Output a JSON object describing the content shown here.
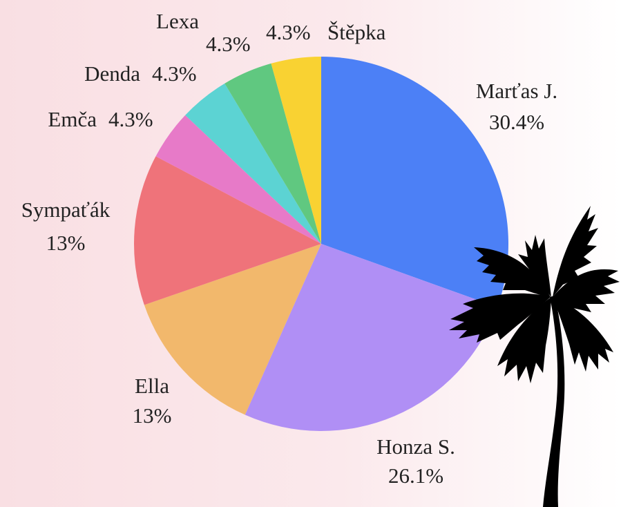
{
  "chart_data": {
    "type": "pie",
    "categories": [
      "Marťas J.",
      "Honza S.",
      "Ella",
      "Sympaťák",
      "Emča",
      "Denda",
      "Lexa",
      "Štěpka"
    ],
    "values": [
      30.4,
      26.1,
      13,
      13,
      4.3,
      4.3,
      4.3,
      4.3
    ],
    "value_labels": [
      "30.4%",
      "26.1%",
      "13%",
      "13%",
      "4.3%",
      "4.3%",
      "4.3%",
      "4.3%"
    ],
    "colors": [
      "#4c80f6",
      "#b08ff5",
      "#f2b86c",
      "#ef737a",
      "#e77ac8",
      "#5cd3d3",
      "#60c880",
      "#f9d232"
    ]
  }
}
